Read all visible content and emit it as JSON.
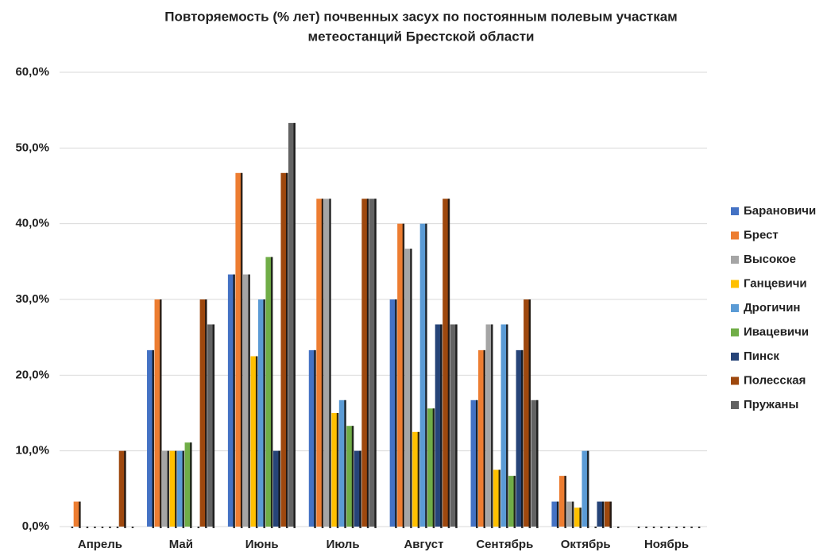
{
  "chart_data": {
    "type": "bar",
    "title": [
      "Повторяемость (% лет) почвенных засух по постоянным полевым участкам",
      "метеостанций Брестской области"
    ],
    "categories": [
      "Апрель",
      "Май",
      "Июнь",
      "Июль",
      "Август",
      "Сентябрь",
      "Октябрь",
      "Ноябрь"
    ],
    "series": [
      {
        "name": "Барановичи",
        "color": "#4472c4",
        "values": [
          0,
          23.3,
          33.3,
          23.3,
          30,
          16.7,
          3.3,
          0
        ]
      },
      {
        "name": "Брест",
        "color": "#ed7d31",
        "values": [
          3.3,
          30,
          46.7,
          43.3,
          40,
          23.3,
          6.7,
          0
        ]
      },
      {
        "name": "Высокое",
        "color": "#a5a5a5",
        "values": [
          0,
          10,
          33.3,
          43.3,
          36.7,
          26.7,
          3.3,
          0
        ]
      },
      {
        "name": "Ганцевичи",
        "color": "#ffc000",
        "values": [
          0,
          10,
          22.5,
          15,
          12.5,
          7.5,
          2.5,
          0
        ]
      },
      {
        "name": "Дрогичин",
        "color": "#5b9bd5",
        "values": [
          0,
          10,
          30,
          16.7,
          40,
          26.7,
          10,
          0
        ]
      },
      {
        "name": "Ивацевичи",
        "color": "#70ad47",
        "values": [
          0,
          11.1,
          35.6,
          13.3,
          15.6,
          6.7,
          0,
          0
        ]
      },
      {
        "name": "Пинск",
        "color": "#264478",
        "values": [
          0,
          0,
          10,
          10,
          26.7,
          23.3,
          3.3,
          0
        ]
      },
      {
        "name": "Полесская",
        "color": "#9e480e",
        "values": [
          10,
          30,
          46.7,
          43.3,
          43.3,
          30,
          3.3,
          0
        ]
      },
      {
        "name": "Пружаны",
        "color": "#636363",
        "values": [
          0,
          26.7,
          53.3,
          43.3,
          26.7,
          16.7,
          0,
          0
        ]
      }
    ],
    "ylim": [
      0,
      60
    ],
    "yticks": [
      {
        "value": 0,
        "label": "0,0%"
      },
      {
        "value": 10,
        "label": "10,0%"
      },
      {
        "value": 20,
        "label": "20,0%"
      },
      {
        "value": 30,
        "label": "30,0%"
      },
      {
        "value": 40,
        "label": "40,0%"
      },
      {
        "value": 50,
        "label": "50,0%"
      },
      {
        "value": 60,
        "label": "60,0%"
      }
    ],
    "grid": true,
    "legend": "right"
  }
}
